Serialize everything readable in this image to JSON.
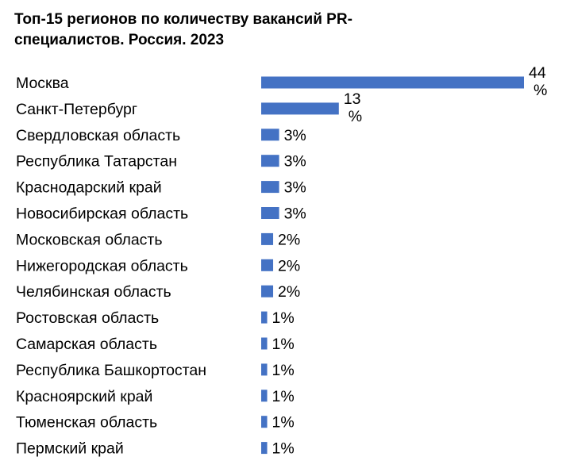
{
  "chart_data": {
    "type": "bar",
    "orientation": "horizontal",
    "title": "Топ-15 регионов по количеству вакансий PR-специалистов. Россия. 2023",
    "bar_color": "#4472C4",
    "categories": [
      "Москва",
      "Санкт-Петербург",
      "Свердловская область",
      "Республика Татарстан",
      "Краснодарский край",
      "Новосибирская область",
      "Московская область",
      "Нижегородская область",
      "Челябинская область",
      "Ростовская область",
      "Самарская область",
      "Республика Башкортостан",
      "Красноярский край",
      "Тюменская область",
      "Пермский край"
    ],
    "values": [
      44,
      13,
      3,
      3,
      3,
      3,
      2,
      2,
      2,
      1,
      1,
      1,
      1,
      1,
      1
    ],
    "value_labels": [
      "44\n%",
      "13\n%",
      "3%",
      "3%",
      "3%",
      "3%",
      "2%",
      "2%",
      "2%",
      "1%",
      "1%",
      "1%",
      "1%",
      "1%",
      "1%"
    ],
    "xlim": [
      0,
      44
    ],
    "grid": false,
    "legend": "none"
  }
}
